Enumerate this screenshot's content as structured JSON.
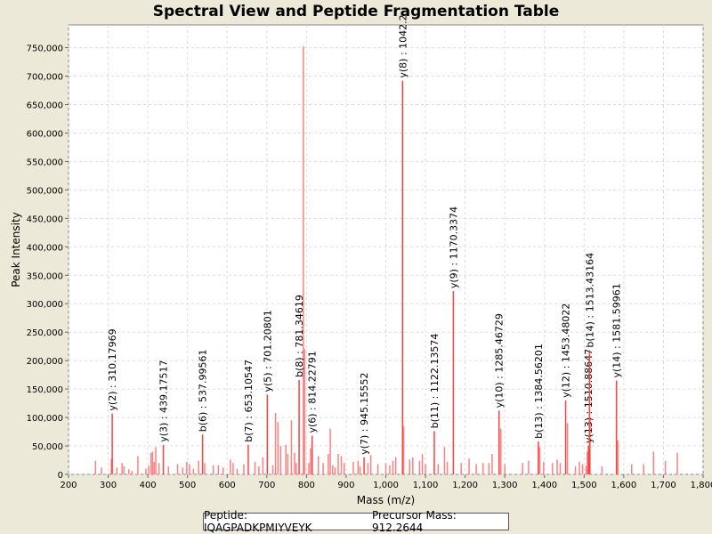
{
  "chart_data": {
    "type": "bar",
    "title": "Spectral View and Peptide Fragmentation Table",
    "xlabel": "Mass (m/z)",
    "ylabel": "Peak Intensity",
    "xlim": [
      200,
      1800
    ],
    "ylim": [
      0,
      790000
    ],
    "xticks": [
      200,
      300,
      400,
      500,
      600,
      700,
      800,
      900,
      1000,
      1100,
      1200,
      1300,
      1400,
      1500,
      1600,
      1700,
      1800
    ],
    "xtick_labels": [
      "200",
      "300",
      "400",
      "500",
      "600",
      "700",
      "800",
      "900",
      "1,000",
      "1,100",
      "1,200",
      "1,300",
      "1,400",
      "1,500",
      "1,600",
      "1,700",
      "1,800"
    ],
    "yticks": [
      0,
      50000,
      100000,
      150000,
      200000,
      250000,
      300000,
      350000,
      400000,
      450000,
      500000,
      550000,
      600000,
      650000,
      700000,
      750000
    ],
    "ytick_labels": [
      "0",
      "50,000",
      "100,000",
      "150,000",
      "200,000",
      "250,000",
      "300,000",
      "350,000",
      "400,000",
      "450,000",
      "500,000",
      "550,000",
      "600,000",
      "650,000",
      "700,000",
      "750,000"
    ],
    "grid": true,
    "bar_color": "#ff4040",
    "annotated_peaks": [
      {
        "mz": 310.17969,
        "intensity": 107000,
        "label": "y(2) : 310.17969"
      },
      {
        "mz": 439.17517,
        "intensity": 52000,
        "label": "y(3) : 439.17517"
      },
      {
        "mz": 537.99561,
        "intensity": 70000,
        "label": "b(6) : 537.99561"
      },
      {
        "mz": 653.10547,
        "intensity": 52000,
        "label": "b(7) : 653.10547"
      },
      {
        "mz": 701.20801,
        "intensity": 140000,
        "label": "y(5) : 701.20801"
      },
      {
        "mz": 781.34619,
        "intensity": 166000,
        "label": "b(8) : 781.34619"
      },
      {
        "mz": 814.22791,
        "intensity": 68000,
        "label": "y(6) : 814.22791"
      },
      {
        "mz": 945.15552,
        "intensity": 30000,
        "label": "y(7) : 945.15552"
      },
      {
        "mz": 1042.2,
        "intensity": 692000,
        "label": "y(8) : 1042.2"
      },
      {
        "mz": 1122.13574,
        "intensity": 76000,
        "label": "b(11) : 1122.13574"
      },
      {
        "mz": 1170.3374,
        "intensity": 322000,
        "label": "y(9) : 1170.3374"
      },
      {
        "mz": 1285.46729,
        "intensity": 112000,
        "label": "y(10) : 1285.46729"
      },
      {
        "mz": 1384.56201,
        "intensity": 58000,
        "label": "b(13) : 1384.56201"
      },
      {
        "mz": 1453.48022,
        "intensity": 130000,
        "label": "y(12) : 1453.48022"
      },
      {
        "mz": 1510.88647,
        "intensity": 50000,
        "label": "y(13) : 1510.88647"
      },
      {
        "mz": 1513.43164,
        "intensity": 218000,
        "label": "b(14) : 1513.43164"
      },
      {
        "mz": 1581.59961,
        "intensity": 165000,
        "label": "y(14) : 1581.59961"
      }
    ],
    "other_peaks": [
      [
        268,
        24000
      ],
      [
        283,
        12000
      ],
      [
        308,
        27000
      ],
      [
        322,
        12000
      ],
      [
        335,
        20000
      ],
      [
        340,
        14000
      ],
      [
        352,
        9000
      ],
      [
        360,
        6000
      ],
      [
        375,
        32000
      ],
      [
        395,
        10000
      ],
      [
        402,
        15000
      ],
      [
        408,
        38000
      ],
      [
        412,
        40000
      ],
      [
        416,
        22000
      ],
      [
        420,
        48000
      ],
      [
        428,
        20000
      ],
      [
        452,
        14000
      ],
      [
        475,
        18000
      ],
      [
        488,
        12000
      ],
      [
        498,
        22000
      ],
      [
        505,
        18000
      ],
      [
        515,
        10000
      ],
      [
        528,
        24000
      ],
      [
        543,
        20000
      ],
      [
        565,
        16000
      ],
      [
        578,
        16000
      ],
      [
        590,
        12000
      ],
      [
        608,
        26000
      ],
      [
        615,
        20000
      ],
      [
        625,
        10000
      ],
      [
        642,
        18000
      ],
      [
        670,
        22000
      ],
      [
        680,
        14000
      ],
      [
        690,
        30000
      ],
      [
        715,
        16000
      ],
      [
        722,
        108000
      ],
      [
        728,
        92000
      ],
      [
        735,
        50000
      ],
      [
        748,
        52000
      ],
      [
        753,
        36000
      ],
      [
        762,
        95000
      ],
      [
        770,
        38000
      ],
      [
        774,
        20000
      ],
      [
        792,
        752000
      ],
      [
        795,
        220000
      ],
      [
        806,
        20000
      ],
      [
        810,
        46000
      ],
      [
        830,
        32000
      ],
      [
        842,
        20000
      ],
      [
        855,
        36000
      ],
      [
        860,
        80000
      ],
      [
        866,
        16000
      ],
      [
        872,
        12000
      ],
      [
        880,
        36000
      ],
      [
        888,
        32000
      ],
      [
        895,
        20000
      ],
      [
        918,
        22000
      ],
      [
        930,
        24000
      ],
      [
        935,
        14000
      ],
      [
        955,
        20000
      ],
      [
        962,
        34000
      ],
      [
        980,
        18000
      ],
      [
        1000,
        20000
      ],
      [
        1010,
        16000
      ],
      [
        1018,
        24000
      ],
      [
        1025,
        30000
      ],
      [
        1045,
        85000
      ],
      [
        1060,
        26000
      ],
      [
        1068,
        30000
      ],
      [
        1085,
        24000
      ],
      [
        1092,
        36000
      ],
      [
        1100,
        18000
      ],
      [
        1132,
        18000
      ],
      [
        1148,
        48000
      ],
      [
        1155,
        22000
      ],
      [
        1190,
        20000
      ],
      [
        1210,
        28000
      ],
      [
        1228,
        18000
      ],
      [
        1245,
        20000
      ],
      [
        1260,
        20000
      ],
      [
        1268,
        36000
      ],
      [
        1290,
        80000
      ],
      [
        1300,
        18000
      ],
      [
        1345,
        20000
      ],
      [
        1360,
        24000
      ],
      [
        1388,
        48000
      ],
      [
        1398,
        22000
      ],
      [
        1420,
        20000
      ],
      [
        1432,
        26000
      ],
      [
        1440,
        20000
      ],
      [
        1458,
        90000
      ],
      [
        1478,
        14000
      ],
      [
        1488,
        22000
      ],
      [
        1496,
        18000
      ],
      [
        1505,
        15000
      ],
      [
        1508,
        40000
      ],
      [
        1515,
        100000
      ],
      [
        1545,
        14000
      ],
      [
        1585,
        60000
      ],
      [
        1620,
        18000
      ],
      [
        1650,
        18000
      ],
      [
        1675,
        40000
      ],
      [
        1705,
        24000
      ],
      [
        1735,
        38000
      ]
    ]
  },
  "legend": {
    "peptide": "Peptide: IQAGPADKPMIYVEYK",
    "precursor": "Precursor Mass: 912.2644"
  }
}
